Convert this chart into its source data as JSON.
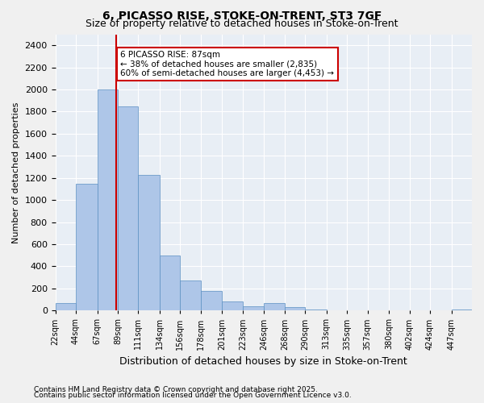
{
  "title_line1": "6, PICASSO RISE, STOKE-ON-TRENT, ST3 7GF",
  "title_line2": "Size of property relative to detached houses in Stoke-on-Trent",
  "xlabel": "Distribution of detached houses by size in Stoke-on-Trent",
  "ylabel": "Number of detached properties",
  "footnote_line1": "Contains HM Land Registry data © Crown copyright and database right 2025.",
  "footnote_line2": "Contains public sector information licensed under the Open Government Licence v3.0.",
  "bar_color": "#aec6e8",
  "bar_edge_color": "#5a8fc2",
  "background_color": "#e8eef5",
  "grid_color": "#ffffff",
  "vline_x": 87,
  "vline_color": "#cc0000",
  "annotation_text": "6 PICASSO RISE: 87sqm\n← 38% of detached houses are smaller (2,835)\n60% of semi-detached houses are larger (4,453) →",
  "annotation_box_color": "#cc0000",
  "bin_edges": [
    22,
    44,
    67,
    89,
    111,
    134,
    156,
    178,
    201,
    223,
    246,
    268,
    290,
    313,
    335,
    357,
    380,
    402,
    424,
    447,
    469
  ],
  "bar_heights": [
    70,
    1150,
    2000,
    1850,
    1230,
    500,
    270,
    175,
    85,
    40,
    70,
    30,
    10,
    5,
    2,
    2,
    1,
    1,
    1,
    10
  ],
  "ylim": [
    0,
    2500
  ],
  "yticks": [
    0,
    200,
    400,
    600,
    800,
    1000,
    1200,
    1400,
    1600,
    1800,
    2000,
    2200,
    2400
  ]
}
